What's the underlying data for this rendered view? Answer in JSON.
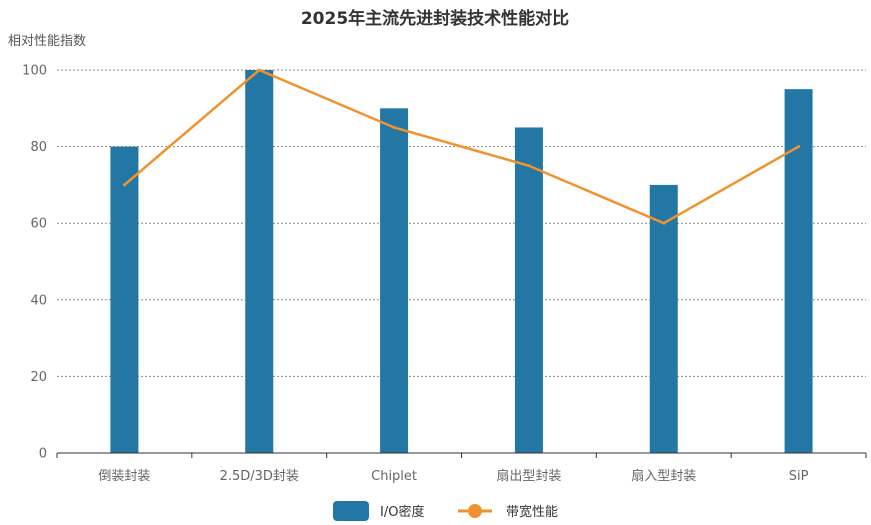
{
  "chart_data": {
    "type": "bar",
    "title": "2025年主流先进封装技术性能对比",
    "ylabel": "相对性能指数",
    "xlabel": "",
    "ylim": [
      0,
      100
    ],
    "yticks": [
      0,
      20,
      40,
      60,
      80,
      100
    ],
    "grid": true,
    "legend_position": "bottom",
    "categories": [
      "倒装封装",
      "2.5D/3D封装",
      "Chiplet",
      "扇出型封装",
      "扇入型封装",
      "SiP"
    ],
    "series": [
      {
        "name": "I/O密度",
        "type": "bar",
        "color": "#2277a4",
        "values": [
          80,
          100,
          90,
          85,
          70,
          95
        ]
      },
      {
        "name": "带宽性能",
        "type": "line",
        "color": "#f0922e",
        "values": [
          70,
          100,
          85,
          75,
          60,
          80
        ]
      }
    ]
  }
}
